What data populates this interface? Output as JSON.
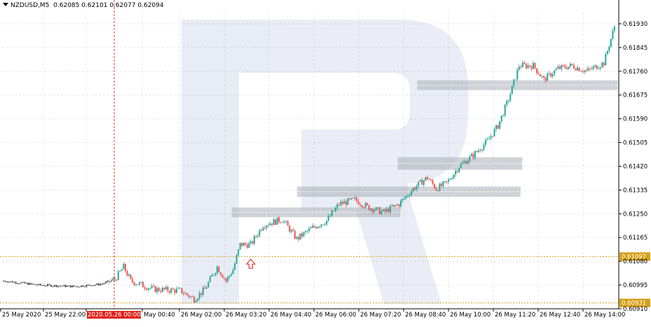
{
  "header": {
    "symbol": "NZDUSD,M5",
    "ohlc": "0.62085 0.62101 0.62077 0.62094"
  },
  "colors": {
    "bull": "#26a69a",
    "bear": "#ef5350",
    "grid": "#e6e6e6",
    "level": "#d4a017",
    "zone": "#a9aeb6",
    "crosshair": "#d9392b",
    "arrow": "#e53935"
  },
  "chart_data": {
    "type": "candlestick",
    "ylim": [
      0.6091,
      0.6197
    ],
    "y_ticks": [
      "0.61930",
      "0.61845",
      "0.61760",
      "0.61675",
      "0.61590",
      "0.61505",
      "0.61420",
      "0.61335",
      "0.61250",
      "0.61165",
      "0.61080",
      "0.60995",
      "0.60910"
    ],
    "x_labels": [
      "25 May 2020",
      "25 May 22:00",
      "2020.05.26 00:00",
      "May 00:40",
      "26 May 02:00",
      "26 May 03:20",
      "26 May 04:40",
      "26 May 06:00",
      "26 May 07:20",
      "26 May 08:40",
      "26 May 10:00",
      "26 May 11:20",
      "26 May 12:40",
      "26 May 14:00"
    ],
    "highlighted_time": "2020.05.26 00:00",
    "levels": [
      {
        "price": 0.61097,
        "label": "0.61097"
      },
      {
        "price": 0.60931,
        "label": "0.60931"
      }
    ],
    "zones": [
      {
        "from_bar": 130,
        "to_bar": 224,
        "price_high": 0.61265,
        "price_low": 0.61245
      },
      {
        "from_bar": 167,
        "to_bar": 292,
        "price_high": 0.6134,
        "price_low": 0.61318
      },
      {
        "from_bar": 224,
        "to_bar": 293,
        "price_high": 0.61445,
        "price_low": 0.61415
      },
      {
        "from_bar": 235,
        "to_bar": 347,
        "price_high": 0.6172,
        "price_low": 0.617
      }
    ],
    "marker": {
      "bar": 140,
      "price": 0.61085,
      "type": "up-arrow"
    },
    "anchors": [
      [
        0,
        0.6101
      ],
      [
        20,
        0.60995
      ],
      [
        40,
        0.6099
      ],
      [
        55,
        0.60998
      ],
      [
        63,
        0.61015
      ],
      [
        68,
        0.6106
      ],
      [
        72,
        0.6101
      ],
      [
        85,
        0.6098
      ],
      [
        100,
        0.60975
      ],
      [
        108,
        0.60945
      ],
      [
        114,
        0.6098
      ],
      [
        121,
        0.6106
      ],
      [
        126,
        0.6101
      ],
      [
        130,
        0.6105
      ],
      [
        134,
        0.6114
      ],
      [
        140,
        0.6114
      ],
      [
        147,
        0.6121
      ],
      [
        158,
        0.6123
      ],
      [
        166,
        0.6116
      ],
      [
        175,
        0.612
      ],
      [
        183,
        0.61225
      ],
      [
        190,
        0.61285
      ],
      [
        199,
        0.613
      ],
      [
        206,
        0.61275
      ],
      [
        215,
        0.61255
      ],
      [
        224,
        0.61285
      ],
      [
        232,
        0.6134
      ],
      [
        240,
        0.6138
      ],
      [
        245,
        0.6134
      ],
      [
        251,
        0.6136
      ],
      [
        258,
        0.6142
      ],
      [
        266,
        0.6146
      ],
      [
        274,
        0.6151
      ],
      [
        280,
        0.61565
      ],
      [
        286,
        0.6166
      ],
      [
        292,
        0.6178
      ],
      [
        300,
        0.6178
      ],
      [
        306,
        0.6173
      ],
      [
        314,
        0.6177
      ],
      [
        322,
        0.6178
      ],
      [
        330,
        0.6176
      ],
      [
        340,
        0.6179
      ],
      [
        346,
        0.6192
      ]
    ]
  }
}
